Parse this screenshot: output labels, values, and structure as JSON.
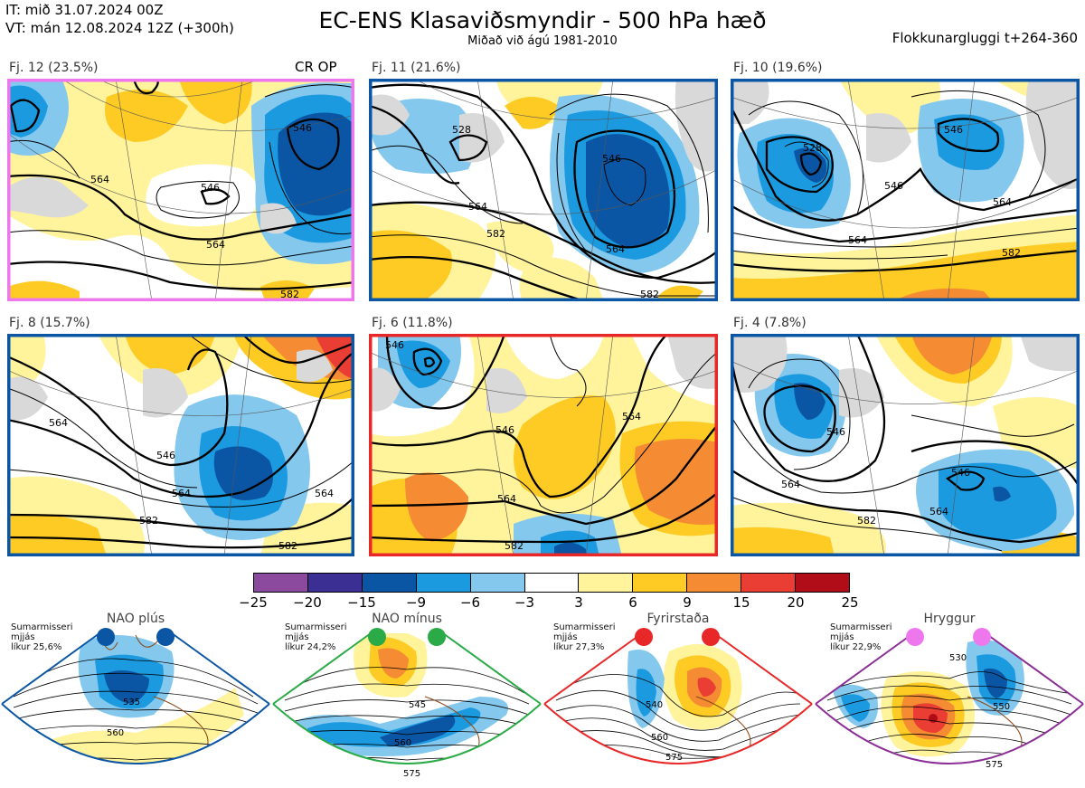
{
  "header": {
    "it_line": "IT: mið 31.07.2024 00Z",
    "vt_line": "VT: mán 12.08.2024 12Z  (+300h)",
    "title": "EC-ENS Klasaviðsmyndir - 500 hPa hæð",
    "subtitle": "Miðað við ágú 1981-2010",
    "window": "Flokkunargluggi t+264-360"
  },
  "panels": [
    {
      "label": "Fj. 12 (23.5%)",
      "badge": "CR OP",
      "frame_color": "#ee77ee",
      "contours": [
        "546",
        "564",
        "546",
        "564",
        "582"
      ]
    },
    {
      "label": "Fj. 11 (21.6%)",
      "badge": "",
      "frame_color": "#0b56a4",
      "contours": [
        "528",
        "546",
        "564",
        "582",
        "564",
        "582"
      ]
    },
    {
      "label": "Fj. 10 (19.6%)",
      "badge": "",
      "frame_color": "#0b56a4",
      "contours": [
        "528",
        "546",
        "546",
        "564",
        "564",
        "582"
      ]
    },
    {
      "label": "Fj. 8 (15.7%)",
      "badge": "",
      "frame_color": "#0b56a4",
      "contours": [
        "564",
        "546",
        "564",
        "582",
        "564",
        "582"
      ]
    },
    {
      "label": "Fj. 6 (11.8%)",
      "badge": "",
      "frame_color": "#e82828",
      "contours": [
        "546",
        "546",
        "564",
        "564",
        "582"
      ]
    },
    {
      "label": "Fj. 4 (7.8%)",
      "badge": "",
      "frame_color": "#0b56a4",
      "contours": [
        "546",
        "546",
        "564",
        "564",
        "582"
      ]
    }
  ],
  "colorbar": {
    "colors": [
      "#8b4a9e",
      "#3c2f93",
      "#0b56a4",
      "#1c9ae0",
      "#85c8ee",
      "#ffffff",
      "#fff39c",
      "#fecb24",
      "#f58b32",
      "#ea3d33",
      "#b00d18"
    ],
    "ticks": [
      "−25",
      "−20",
      "−15",
      "−9",
      "−6",
      "−3",
      "3",
      "6",
      "9",
      "15",
      "20",
      "25"
    ]
  },
  "regimes": [
    {
      "name": "NAO plús",
      "season": "Sumarmisseri",
      "mean": "mjjás",
      "prob": "líkur 25,6%",
      "dot_color": "#0b56a4",
      "frame_color": "#0b56a4",
      "contours": [
        "535",
        "560"
      ]
    },
    {
      "name": "NAO mínus",
      "season": "Sumarmisseri",
      "mean": "mjjás",
      "prob": "líkur 24,2%",
      "dot_color": "#2bab48",
      "frame_color": "#2bab48",
      "contours": [
        "545",
        "560",
        "575"
      ]
    },
    {
      "name": "Fyrirstaða",
      "season": "Sumarmisseri",
      "mean": "mjjás",
      "prob": "líkur 27,3%",
      "dot_color": "#e82828",
      "frame_color": "#e82828",
      "contours": [
        "540",
        "560",
        "575"
      ]
    },
    {
      "name": "Hryggur",
      "season": "Sumarmisseri",
      "mean": "mjjás",
      "prob": "líkur 22,9%",
      "dot_color": "#ee77ee",
      "frame_color": "#8b2e96",
      "contours": [
        "530",
        "550",
        "575"
      ]
    }
  ]
}
